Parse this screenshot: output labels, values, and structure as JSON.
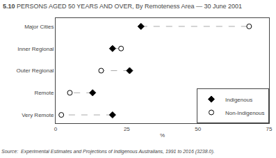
{
  "chart_data": {
    "type": "dot",
    "title": "5.10 PERSONS AGED 50 YEARS AND OVER, By Remoteness Area — 30 June 2001",
    "categories": [
      "Major Cities",
      "Inner Regional",
      "Outer Regional",
      "Remote",
      "Very Remote"
    ],
    "series": [
      {
        "name": "Indigenous",
        "color": "black",
        "marker": "diamond",
        "values": [
          30,
          20,
          26,
          13,
          20
        ]
      },
      {
        "name": "Non-Indigenous",
        "color": "white",
        "marker": "circle",
        "values": [
          68,
          23,
          16,
          5,
          2
        ]
      }
    ],
    "xlabel": "%",
    "xlim": [
      0,
      75
    ],
    "xticks": [
      0,
      25,
      50,
      75
    ],
    "grid": false,
    "legend": "lower right",
    "annotations": [
      {
        "text": "Source:  Experimental Estimates and Projections of Indigenous Australians, 1991 to 2016 (3238.0)."
      }
    ]
  }
}
